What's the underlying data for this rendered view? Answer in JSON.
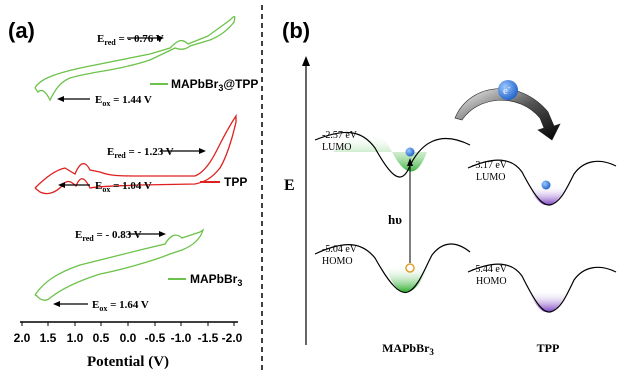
{
  "panel_a": {
    "label": "(a)",
    "x_title": "Potential (V)",
    "x_ticks": [
      "2.0",
      "1.5",
      "1.0",
      "0.5",
      "0.0",
      "-0.5",
      "-1.0",
      "-1.5",
      "-2.0"
    ],
    "traces": [
      {
        "name": "MAPbBr3@TPP",
        "legend_main": "MAPbBr",
        "legend_sub": "3",
        "legend_tail": "@TPP",
        "color": "#6cc24a",
        "ered_value": "- 0.76 V",
        "eox_value": "1.44 V"
      },
      {
        "name": "TPP",
        "legend_main": "TPP",
        "legend_sub": "",
        "legend_tail": "",
        "color": "#e02020",
        "ered_value": "- 1.23 V",
        "eox_value": "1.04 V"
      },
      {
        "name": "MAPbBr3",
        "legend_main": "MAPbBr",
        "legend_sub": "3",
        "legend_tail": "",
        "color": "#6cc24a",
        "ered_value": "- 0.83 V",
        "eox_value": "1.64 V"
      }
    ],
    "ered_prefix": "E",
    "ered_sub": "red",
    "ered_eq": " = ",
    "eox_prefix": "E",
    "eox_sub": "ox",
    "eox_eq": " = "
  },
  "panel_b": {
    "label": "(b)",
    "axis_label": "E",
    "electron_label": "e",
    "electron_charge": "-",
    "excitation_label": "hυ",
    "mapbbr3": {
      "lumo_energy": "-2.57 eV",
      "lumo_label": "LUMO",
      "homo_energy": "-5.04 eV",
      "homo_label": "HOMO",
      "name_main": "MAPbBr",
      "name_sub": "3",
      "color": "#3fb83f"
    },
    "tpp": {
      "lumo_energy": "-3.17 eV",
      "lumo_label": "LUMO",
      "homo_energy": "-5.44 eV",
      "homo_label": "HOMO",
      "name": "TPP",
      "color": "#8a4fc7"
    }
  }
}
